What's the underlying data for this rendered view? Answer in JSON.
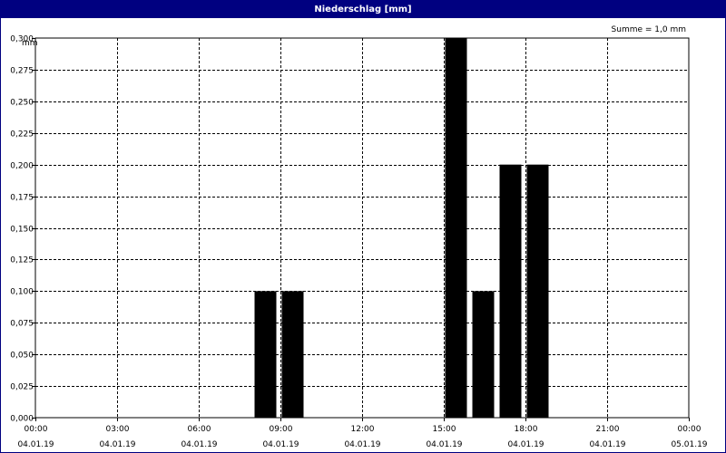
{
  "window": {
    "title": "Niederschlag [mm]"
  },
  "chart_data": {
    "type": "bar",
    "title": "Niederschlag [mm]",
    "ylabel": "mm",
    "annotation": "Summe = 1,0 mm",
    "ylim": [
      0,
      0.3
    ],
    "yticks": [
      "0,000",
      "0,025",
      "0,050",
      "0,075",
      "0,100",
      "0,125",
      "0,150",
      "0,175",
      "0,200",
      "0,225",
      "0,250",
      "0,275",
      "0,300"
    ],
    "xlim_hours": [
      0,
      24
    ],
    "xticks": [
      {
        "time": "00:00",
        "date": "04.01.19"
      },
      {
        "time": "03:00",
        "date": "04.01.19"
      },
      {
        "time": "06:00",
        "date": "04.01.19"
      },
      {
        "time": "09:00",
        "date": "04.01.19"
      },
      {
        "time": "12:00",
        "date": "04.01.19"
      },
      {
        "time": "15:00",
        "date": "04.01.19"
      },
      {
        "time": "18:00",
        "date": "04.01.19"
      },
      {
        "time": "21:00",
        "date": "04.01.19"
      },
      {
        "time": "00:00",
        "date": "05.01.19"
      }
    ],
    "bars": [
      {
        "hour": "08:00",
        "value": 0.1
      },
      {
        "hour": "09:00",
        "value": 0.1
      },
      {
        "hour": "15:00",
        "value": 0.3
      },
      {
        "hour": "16:00",
        "value": 0.1
      },
      {
        "hour": "17:00",
        "value": 0.2
      },
      {
        "hour": "18:00",
        "value": 0.2
      }
    ],
    "grid": true,
    "bar_color": "#000000",
    "grid_color": "#000000"
  }
}
